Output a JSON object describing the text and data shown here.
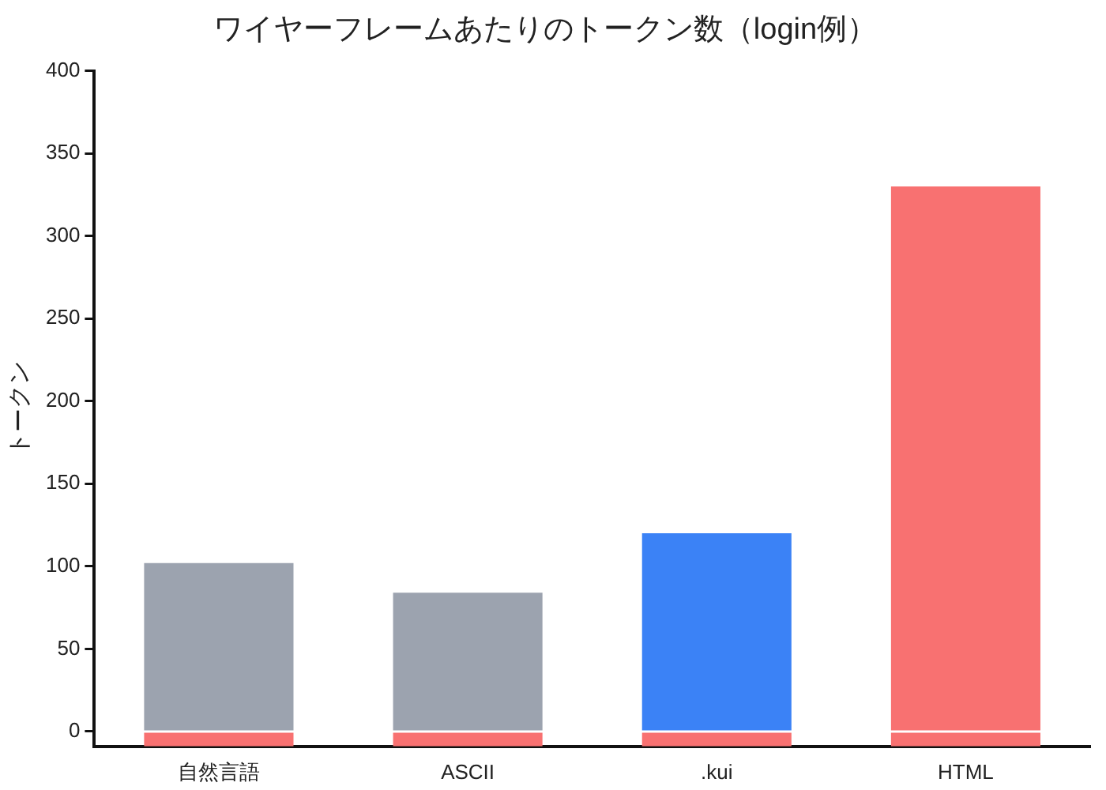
{
  "chart_data": {
    "type": "bar",
    "title": "ワイヤーフレームあたりのトークン数（login例）",
    "ylabel": "トークン",
    "categories": [
      "自然言語",
      "ASCII",
      ".kui",
      "HTML"
    ],
    "series": [
      {
        "colors": [
          "#9ca3af",
          "#9ca3af",
          "#3b82f6",
          "#f87171"
        ],
        "values": [
          102,
          84,
          120,
          330
        ],
        "base": [
          0,
          0,
          0,
          0
        ]
      },
      {
        "color": "#f87171",
        "values": [
          9,
          9,
          9,
          9
        ],
        "base": [
          -9,
          -9,
          -9,
          -9
        ]
      }
    ],
    "ylim": [
      -9,
      400
    ],
    "yticks": [
      0,
      50,
      100,
      150,
      200,
      250,
      300,
      350,
      400
    ],
    "grid": false,
    "legend": false
  }
}
